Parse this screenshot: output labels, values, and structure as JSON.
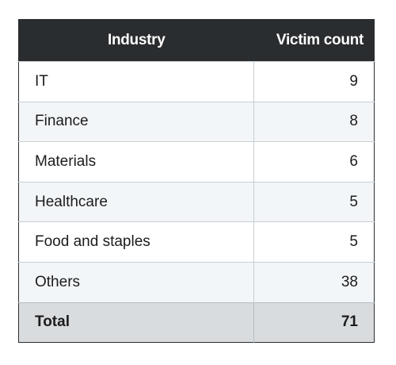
{
  "chart_data": {
    "type": "table",
    "columns": [
      "Industry",
      "Victim count"
    ],
    "rows": [
      {
        "industry": "IT",
        "count": 9
      },
      {
        "industry": "Finance",
        "count": 8
      },
      {
        "industry": "Materials",
        "count": 6
      },
      {
        "industry": "Healthcare",
        "count": 5
      },
      {
        "industry": "Food and staples",
        "count": 5
      },
      {
        "industry": "Others",
        "count": 38
      }
    ],
    "total": {
      "label": "Total",
      "count": 71
    }
  },
  "colors": {
    "header_bg": "#2a2d2f",
    "row_alt_bg": "#f3f6f8",
    "total_bg": "#d8dcdf"
  }
}
